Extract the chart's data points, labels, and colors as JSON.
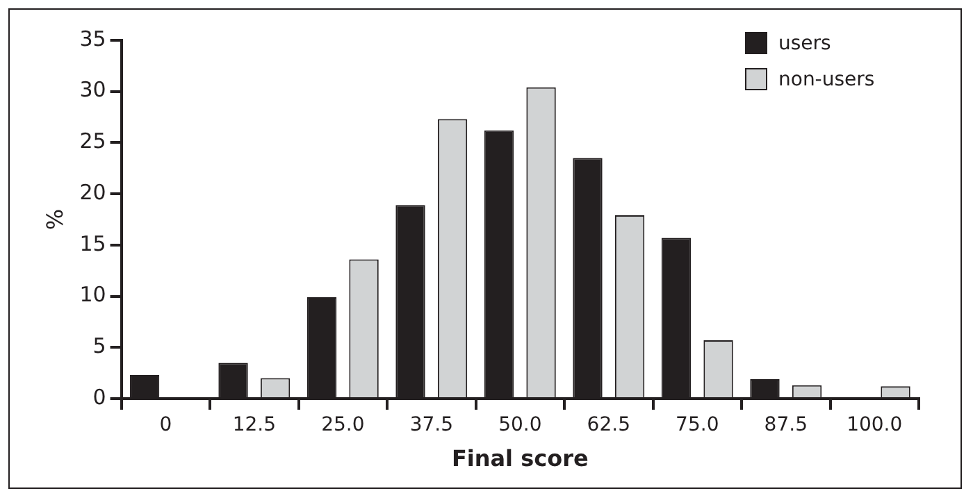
{
  "chart_data": {
    "type": "bar",
    "xlabel": "Final score",
    "ylabel": "%",
    "categories": [
      "0",
      "12.5",
      "25.0",
      "37.5",
      "50.0",
      "62.5",
      "75.0",
      "87.5",
      "100.0"
    ],
    "series": [
      {
        "name": "users",
        "color": "#231f20",
        "values": [
          2.3,
          3.5,
          9.9,
          18.9,
          26.2,
          23.5,
          15.7,
          1.9,
          0
        ]
      },
      {
        "name": "non-users",
        "color": "#d1d3d4",
        "values": [
          0,
          2.0,
          13.6,
          27.3,
          30.4,
          17.9,
          5.7,
          1.3,
          1.2
        ]
      }
    ],
    "ylim": [
      0,
      35
    ],
    "yticks": [
      0,
      5,
      10,
      15,
      20,
      25,
      30,
      35
    ],
    "grid": false,
    "legend": "top right"
  }
}
